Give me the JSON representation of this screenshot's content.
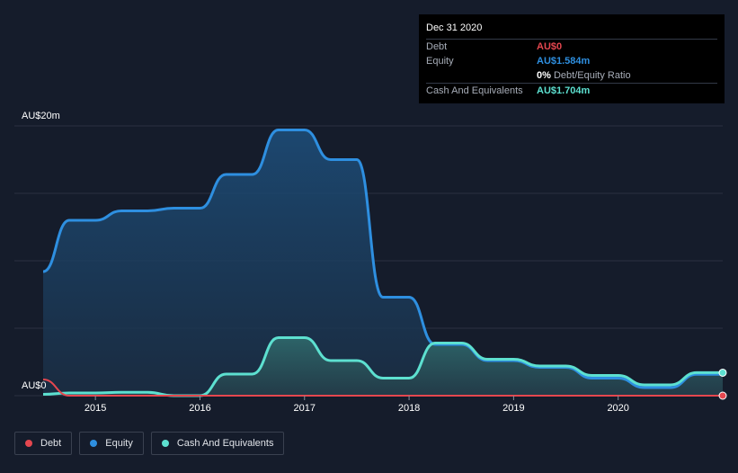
{
  "tooltip": {
    "date": "Dec 31 2020",
    "rows": [
      {
        "label": "Debt",
        "value": "AU$0",
        "color": "#e5474f"
      },
      {
        "label": "Equity",
        "value": "AU$1.584m",
        "color": "#2e8fe0"
      },
      {
        "ratio_pct": "0%",
        "ratio_text": "Debt/Equity Ratio"
      },
      {
        "label": "Cash And Equivalents",
        "value": "AU$1.704m",
        "color": "#5de0d0"
      }
    ]
  },
  "legend": [
    {
      "label": "Debt",
      "color": "#e5474f"
    },
    {
      "label": "Equity",
      "color": "#2e8fe0"
    },
    {
      "label": "Cash And Equivalents",
      "color": "#5de0d0"
    }
  ],
  "chart_data": {
    "type": "area",
    "ylabel_top": "AU$20m",
    "ylabel_bottom": "AU$0",
    "ylim": [
      0,
      20
    ],
    "xlim": [
      2014.5,
      2021.0
    ],
    "x_ticks": [
      {
        "value": 2015,
        "label": "2015"
      },
      {
        "value": 2016,
        "label": "2016"
      },
      {
        "value": 2017,
        "label": "2017"
      },
      {
        "value": 2018,
        "label": "2018"
      },
      {
        "value": 2019,
        "label": "2019"
      },
      {
        "value": 2020,
        "label": "2020"
      }
    ],
    "gridlines": [
      0,
      5,
      10,
      15,
      20
    ],
    "series": [
      {
        "name": "Equity",
        "color": "#2e8fe0",
        "points": [
          [
            2014.5,
            9.2
          ],
          [
            2014.75,
            13.0
          ],
          [
            2015.0,
            13.0
          ],
          [
            2015.25,
            13.7
          ],
          [
            2015.5,
            13.7
          ],
          [
            2015.75,
            13.9
          ],
          [
            2016.0,
            13.9
          ],
          [
            2016.25,
            16.4
          ],
          [
            2016.5,
            16.4
          ],
          [
            2016.75,
            19.7
          ],
          [
            2017.0,
            19.7
          ],
          [
            2017.25,
            17.5
          ],
          [
            2017.5,
            17.5
          ],
          [
            2017.75,
            7.3
          ],
          [
            2018.0,
            7.3
          ],
          [
            2018.25,
            3.8
          ],
          [
            2018.5,
            3.8
          ],
          [
            2018.75,
            2.6
          ],
          [
            2019.0,
            2.6
          ],
          [
            2019.25,
            2.1
          ],
          [
            2019.5,
            2.1
          ],
          [
            2019.75,
            1.3
          ],
          [
            2020.0,
            1.3
          ],
          [
            2020.25,
            0.6
          ],
          [
            2020.5,
            0.6
          ],
          [
            2020.75,
            1.584
          ],
          [
            2021.0,
            1.584
          ]
        ]
      },
      {
        "name": "Cash And Equivalents",
        "color": "#5de0d0",
        "points": [
          [
            2014.5,
            0.1
          ],
          [
            2014.75,
            0.2
          ],
          [
            2015.0,
            0.2
          ],
          [
            2015.25,
            0.25
          ],
          [
            2015.5,
            0.25
          ],
          [
            2015.75,
            0.0
          ],
          [
            2016.0,
            0.0
          ],
          [
            2016.25,
            1.6
          ],
          [
            2016.5,
            1.6
          ],
          [
            2016.75,
            4.3
          ],
          [
            2017.0,
            4.3
          ],
          [
            2017.25,
            2.6
          ],
          [
            2017.5,
            2.6
          ],
          [
            2017.75,
            1.3
          ],
          [
            2018.0,
            1.3
          ],
          [
            2018.25,
            3.9
          ],
          [
            2018.5,
            3.9
          ],
          [
            2018.75,
            2.7
          ],
          [
            2019.0,
            2.7
          ],
          [
            2019.25,
            2.2
          ],
          [
            2019.5,
            2.2
          ],
          [
            2019.75,
            1.5
          ],
          [
            2020.0,
            1.5
          ],
          [
            2020.25,
            0.8
          ],
          [
            2020.5,
            0.8
          ],
          [
            2020.75,
            1.704
          ],
          [
            2021.0,
            1.704
          ]
        ]
      },
      {
        "name": "Debt",
        "color": "#e5474f",
        "points": [
          [
            2014.5,
            1.2
          ],
          [
            2014.75,
            0.0
          ],
          [
            2021.0,
            0.0
          ]
        ]
      }
    ]
  }
}
